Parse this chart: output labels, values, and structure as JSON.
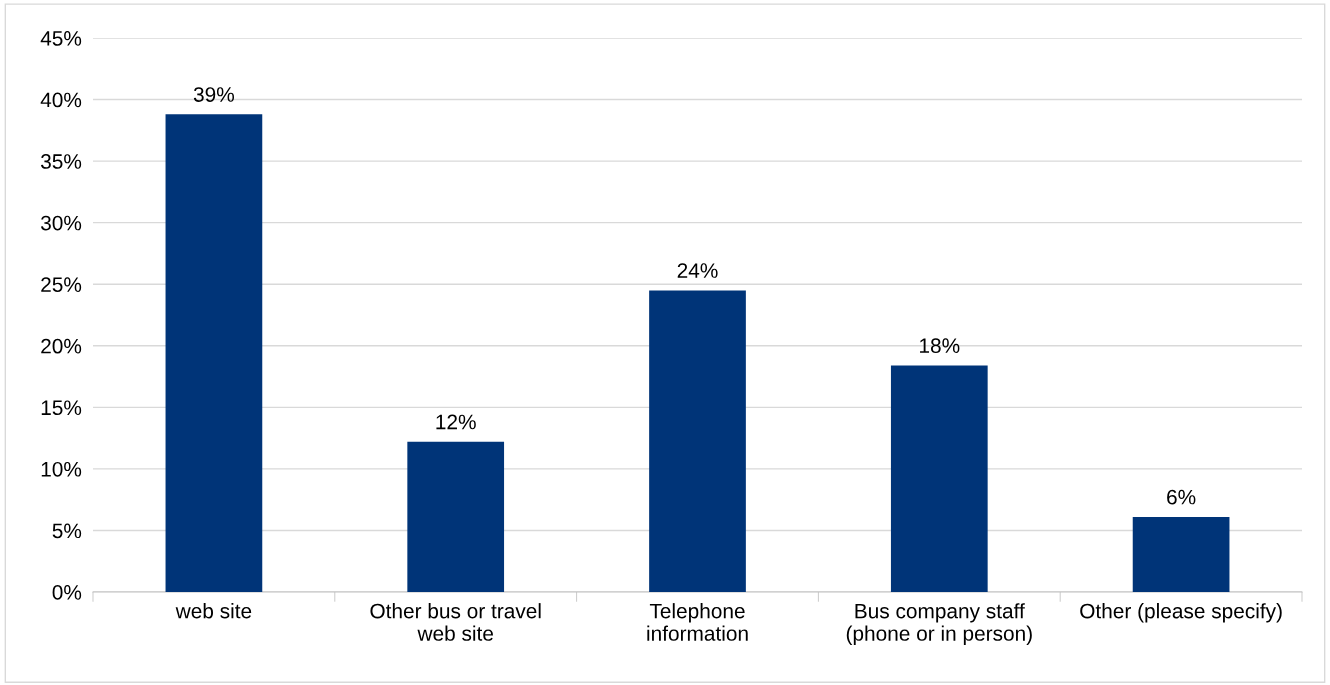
{
  "chart_data": {
    "type": "bar",
    "categories": [
      "web site",
      "Other bus or travel\nweb site",
      "Telephone\ninformation",
      "Bus company staff\n(phone or in person)",
      "Other (please specify)"
    ],
    "values": [
      38.8,
      12.2,
      24.5,
      18.4,
      6.1
    ],
    "value_labels": [
      "39%",
      "12%",
      "24%",
      "18%",
      "6%"
    ],
    "color": "#003478",
    "ylim": [
      0,
      45
    ],
    "yticks": [
      {
        "value": 0,
        "label": "0%"
      },
      {
        "value": 5,
        "label": "5%"
      },
      {
        "value": 10,
        "label": "10%"
      },
      {
        "value": 15,
        "label": "15%"
      },
      {
        "value": 20,
        "label": "20%"
      },
      {
        "value": 25,
        "label": "25%"
      },
      {
        "value": 30,
        "label": "30%"
      },
      {
        "value": 35,
        "label": "35%"
      },
      {
        "value": 40,
        "label": "40%"
      },
      {
        "value": 45,
        "label": "45%"
      }
    ],
    "grid": "y"
  }
}
